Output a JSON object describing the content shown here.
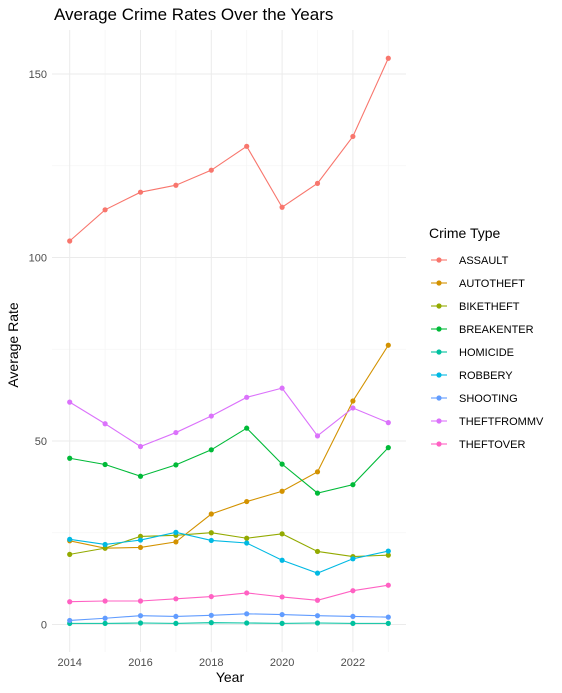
{
  "chart_data": {
    "type": "line",
    "title": "Average Crime Rates Over the Years",
    "xlabel": "Year",
    "ylabel": "Average Rate",
    "xlim": [
      2013.5,
      2023.5
    ],
    "ylim": [
      -7.5,
      162
    ],
    "x_ticks": [
      2014,
      2016,
      2018,
      2020,
      2022
    ],
    "y_ticks": [
      0,
      50,
      100,
      150
    ],
    "grid": true,
    "legend": {
      "title": "Crime Type",
      "placement": "right"
    },
    "x": [
      2014,
      2015,
      2016,
      2017,
      2018,
      2019,
      2020,
      2021,
      2022,
      2023
    ],
    "series": [
      {
        "name": "ASSAULT",
        "color": "#F8766D",
        "values": [
          104.5,
          113.0,
          117.8,
          119.7,
          123.8,
          130.3,
          113.7,
          120.2,
          133.0,
          154.3
        ]
      },
      {
        "name": "AUTOTHEFT",
        "color": "#D39200",
        "values": [
          22.8,
          20.8,
          21.0,
          22.5,
          30.1,
          33.5,
          36.3,
          41.6,
          60.9,
          76.1
        ]
      },
      {
        "name": "BIKETHEFT",
        "color": "#93AA00",
        "values": [
          19.1,
          20.8,
          24.0,
          24.3,
          25.0,
          23.5,
          24.7,
          19.9,
          18.5,
          18.9
        ]
      },
      {
        "name": "BREAKENTER",
        "color": "#00BA38",
        "values": [
          45.3,
          43.6,
          40.4,
          43.5,
          47.6,
          53.5,
          43.7,
          35.8,
          38.1,
          48.2
        ]
      },
      {
        "name": "HOMICIDE",
        "color": "#00C19F",
        "values": [
          0.3,
          0.3,
          0.4,
          0.3,
          0.5,
          0.4,
          0.3,
          0.4,
          0.3,
          0.3
        ]
      },
      {
        "name": "ROBBERY",
        "color": "#00B9E3",
        "values": [
          23.2,
          21.8,
          23.0,
          25.1,
          22.9,
          22.2,
          17.5,
          14.0,
          17.9,
          20.0
        ]
      },
      {
        "name": "SHOOTING",
        "color": "#619CFF",
        "values": [
          1.1,
          1.7,
          2.4,
          2.2,
          2.5,
          2.9,
          2.7,
          2.4,
          2.2,
          2.0
        ]
      },
      {
        "name": "THEFTFROMMV",
        "color": "#DB72FB",
        "values": [
          60.6,
          54.7,
          48.5,
          52.3,
          56.8,
          61.9,
          64.4,
          51.4,
          59.0,
          55.0
        ]
      },
      {
        "name": "THEFTOVER",
        "color": "#FF61C3",
        "values": [
          6.2,
          6.4,
          6.4,
          7.0,
          7.6,
          8.6,
          7.5,
          6.6,
          9.2,
          10.7
        ]
      }
    ]
  }
}
